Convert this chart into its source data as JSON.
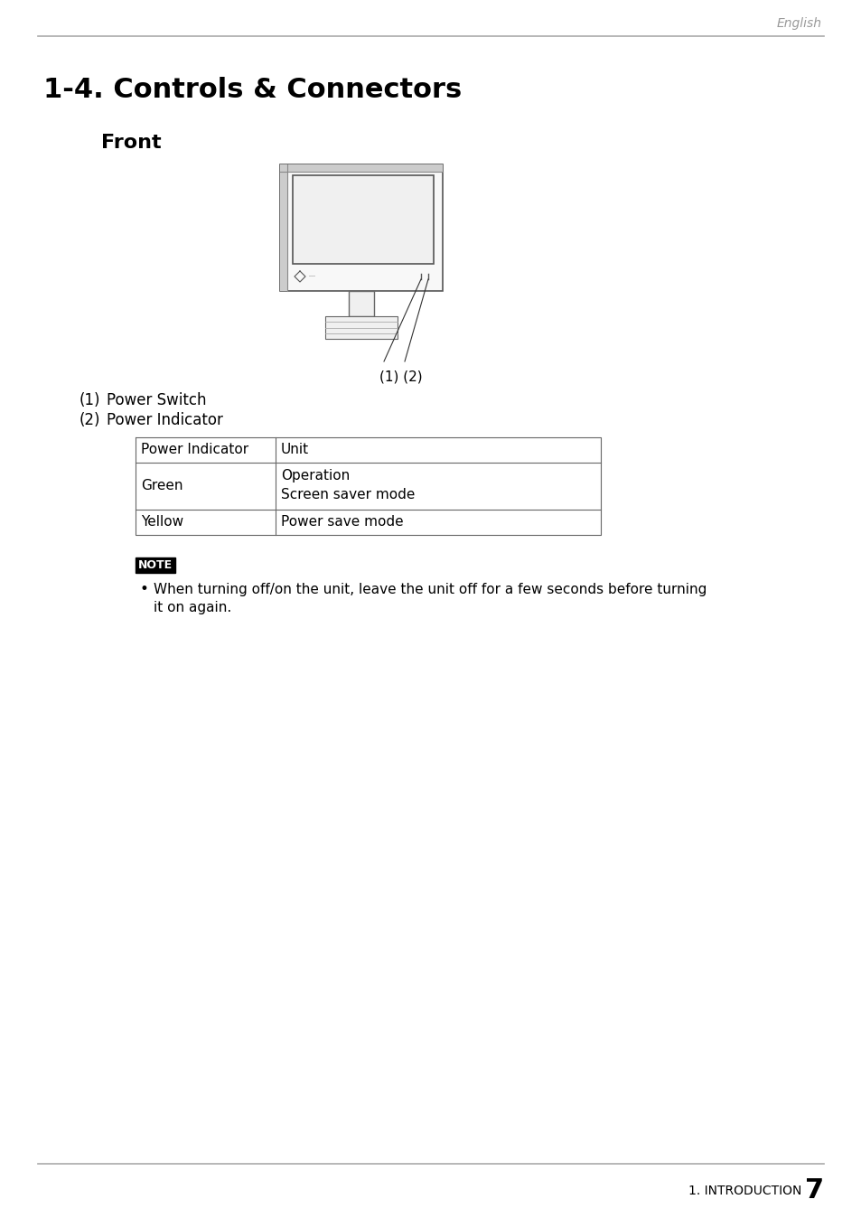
{
  "page_bg": "#ffffff",
  "top_label": "English",
  "top_label_color": "#999999",
  "top_line_color": "#aaaaaa",
  "main_title": "1-4. Controls & Connectors",
  "main_title_color": "#000000",
  "sub_title": "Front",
  "sub_title_color": "#000000",
  "items": [
    [
      "(1)",
      "Power Switch"
    ],
    [
      "(2)",
      "Power Indicator"
    ]
  ],
  "table_headers": [
    "Power Indicator",
    "Unit"
  ],
  "table_rows": [
    [
      "Green",
      [
        "Operation",
        "Screen saver mode"
      ]
    ],
    [
      "Yellow",
      [
        "Power save mode"
      ]
    ]
  ],
  "note_label": "NOTE",
  "note_line1": "When turning off/on the unit, leave the unit off for a few seconds before turning",
  "note_line2": "it on again.",
  "footer_text": "1. INTRODUCTION",
  "footer_page": "7",
  "footer_line_color": "#aaaaaa",
  "callout_text": "(1) (2)"
}
